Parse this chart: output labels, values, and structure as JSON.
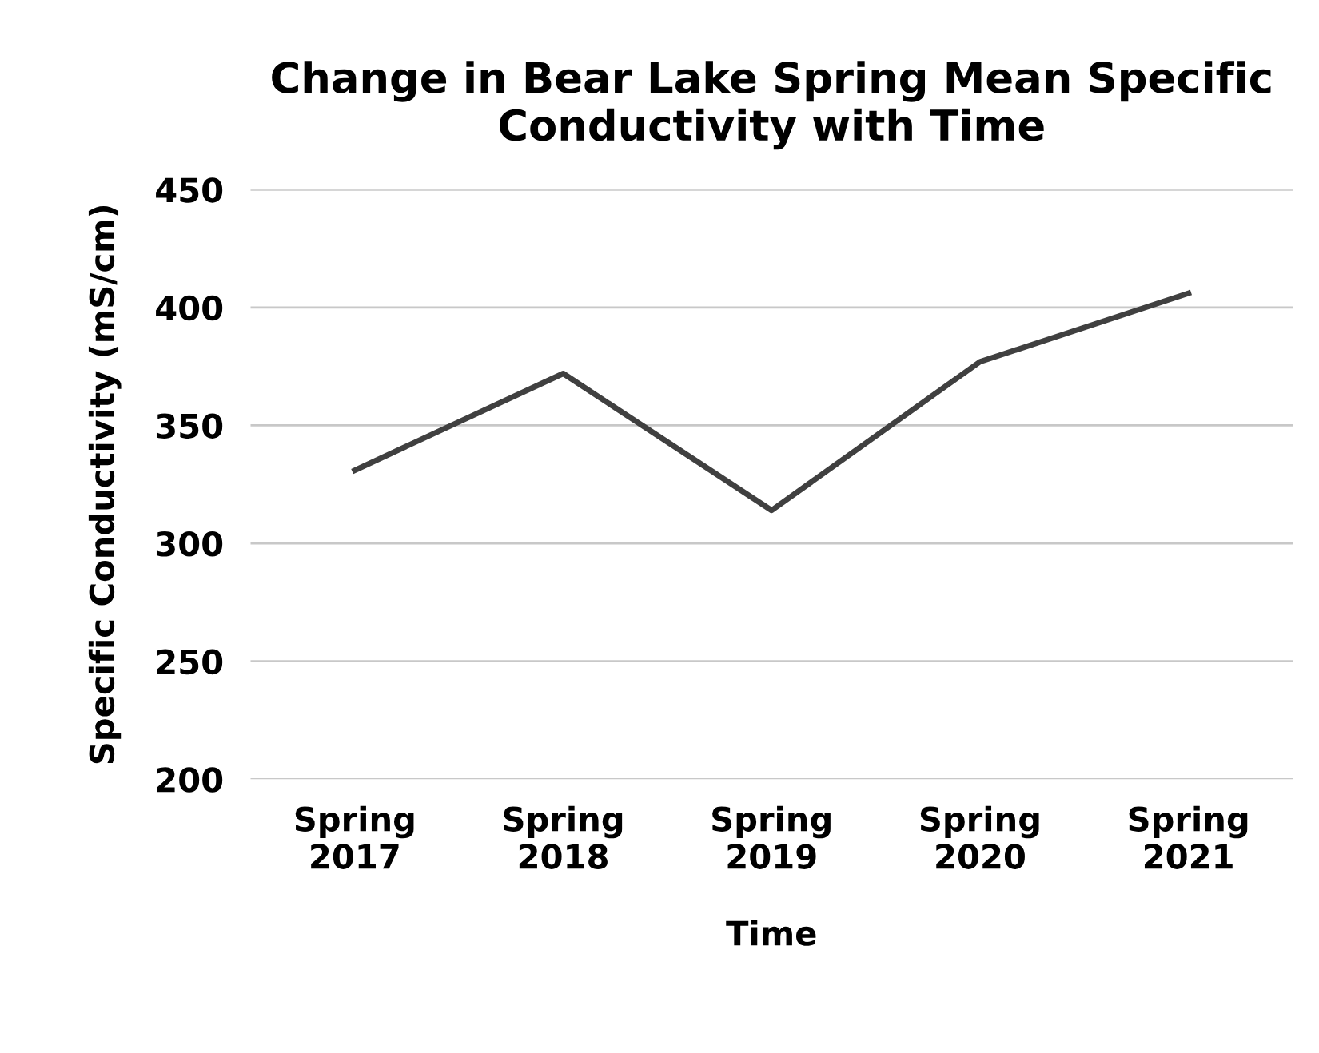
{
  "chart_data": {
    "type": "line",
    "title": "Change in Bear Lake Spring Mean Specific Conductivity with Time",
    "xlabel": "Time",
    "ylabel": "Specific Conductivity (mS/cm)",
    "categories": [
      "Spring\n2017",
      "Spring\n2018",
      "Spring\n2019",
      "Spring\n2020",
      "Spring\n2021"
    ],
    "series": [
      {
        "color": "#404040",
        "values": [
          331,
          372,
          314,
          377,
          406
        ]
      }
    ],
    "ylim": [
      200,
      450
    ],
    "yticks": [
      200,
      250,
      300,
      350,
      400,
      450
    ],
    "grid": "y",
    "legend": false,
    "marker": "none",
    "line_style": "solid"
  }
}
